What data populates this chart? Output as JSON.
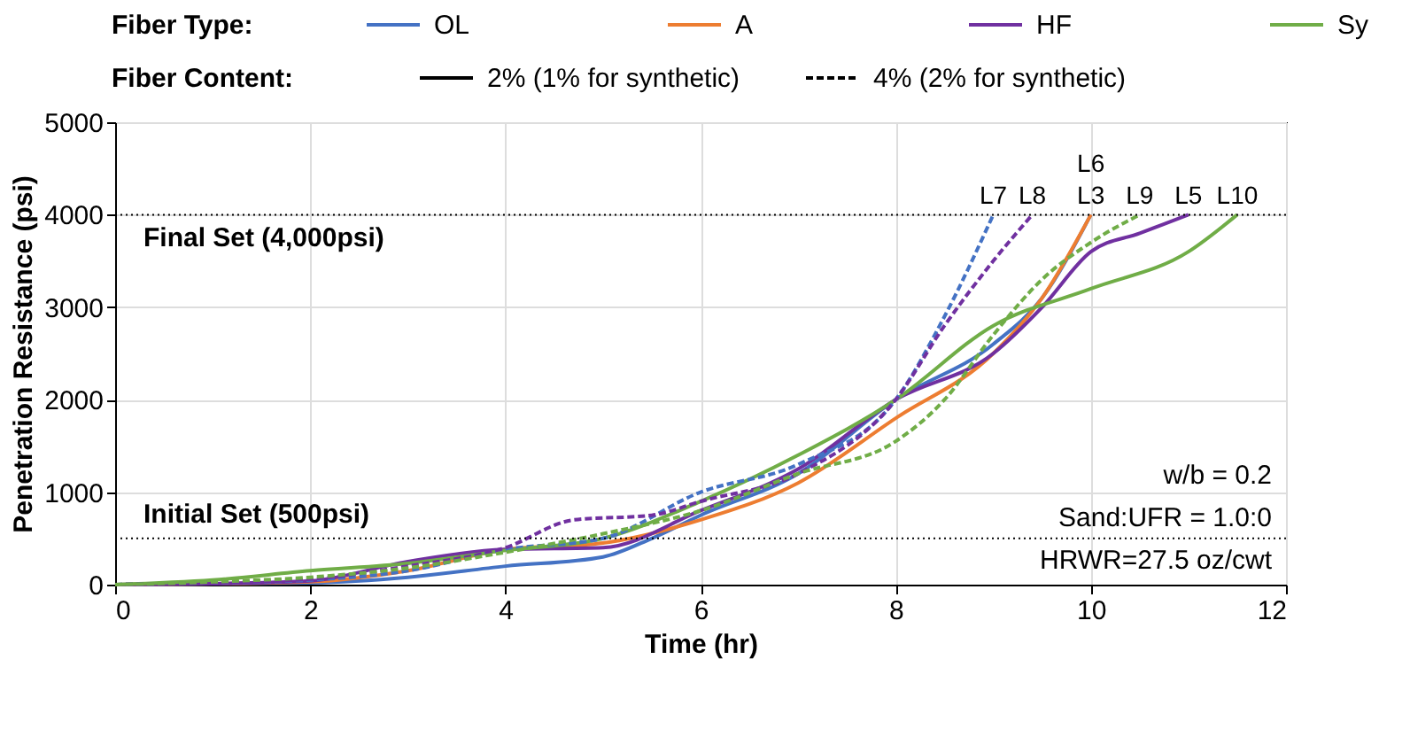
{
  "chart_data": {
    "type": "line",
    "xlabel": "Time (hr)",
    "ylabel": "Penetration Resistance (psi)",
    "legend_title": "Fiber Type:",
    "legend": "top",
    "grid": true,
    "marker": "none",
    "xlim": [
      0,
      12
    ],
    "xticks": [
      0,
      2,
      4,
      6,
      8,
      10,
      12
    ],
    "ylim": [
      0,
      5000
    ],
    "yticks": [
      0,
      1000,
      2000,
      3000,
      4000,
      5000
    ],
    "series": [
      {
        "name": "OL",
        "color": "#4472c4",
        "line_style": "solid",
        "x": [
          0,
          1,
          2,
          3,
          4,
          5,
          5.5,
          6,
          7,
          8,
          9,
          9.5,
          10
        ],
        "values": [
          0,
          10,
          20,
          80,
          200,
          300,
          500,
          750,
          1200,
          2000,
          2600,
          3100,
          4000
        ]
      },
      {
        "name": "A",
        "color": "#ed7d31",
        "line_style": "solid",
        "x": [
          0,
          1,
          2,
          3,
          4,
          5,
          6,
          7,
          8,
          9,
          9.5,
          10
        ],
        "values": [
          0,
          10,
          30,
          150,
          380,
          450,
          700,
          1100,
          1800,
          2500,
          3100,
          4000
        ]
      },
      {
        "name": "HF",
        "color": "#7030a0",
        "line_style": "solid",
        "x": [
          0,
          1,
          2,
          3,
          4,
          5,
          6,
          7,
          8,
          9,
          9.5,
          10,
          10.5,
          11
        ],
        "values": [
          0,
          10,
          40,
          250,
          380,
          400,
          800,
          1250,
          2000,
          2500,
          3000,
          3600,
          3800,
          4000
        ]
      },
      {
        "name": "Sy",
        "color": "#70ad47",
        "line_style": "solid",
        "x": [
          0,
          1,
          2,
          3,
          4,
          5,
          6,
          7,
          8,
          9,
          10,
          11,
          11.5
        ],
        "values": [
          0,
          50,
          150,
          230,
          370,
          500,
          900,
          1400,
          2000,
          2800,
          3200,
          3600,
          4000
        ]
      },
      {
        "color": "#4472c4",
        "line_style": "dashed",
        "x": [
          0,
          1,
          2,
          3,
          4,
          5,
          6,
          7,
          8,
          8.5,
          9
        ],
        "values": [
          0,
          20,
          50,
          150,
          380,
          500,
          1000,
          1300,
          2000,
          2900,
          4000
        ]
      },
      {
        "color": "#7030a0",
        "line_style": "dashed",
        "x": [
          0,
          1,
          2,
          3,
          4,
          4.7,
          5.5,
          6,
          7,
          8,
          8.5,
          9,
          9.4
        ],
        "values": [
          0,
          20,
          60,
          200,
          400,
          700,
          750,
          900,
          1200,
          2000,
          2800,
          3500,
          4000
        ]
      },
      {
        "color": "#70ad47",
        "line_style": "dashed",
        "x": [
          0,
          1,
          2,
          3,
          4,
          5,
          6,
          7,
          8,
          8.5,
          9,
          9.5,
          10,
          10.5
        ],
        "values": [
          0,
          30,
          80,
          180,
          350,
          550,
          800,
          1200,
          1550,
          2000,
          2700,
          3300,
          3700,
          4000
        ]
      }
    ],
    "ref_lines": [
      {
        "axis": "y",
        "value": 4000,
        "label": "Final Set (4,000psi)",
        "color": "#000000",
        "line_style": "dotted"
      },
      {
        "axis": "y",
        "value": 500,
        "label": "Initial Set (500psi)",
        "color": "#000000",
        "line_style": "dotted"
      }
    ],
    "annotations": [
      "Fiber Content:",
      "2% (1% for synthetic)",
      "4% (2% for synthetic)",
      "w/b = 0.2",
      "Sand:UFR = 1.0:0",
      "HRWR=27.5 oz/cwt",
      {
        "text": "L7",
        "x": 9.0,
        "y": 4000
      },
      {
        "text": "L8",
        "x": 9.4,
        "y": 4000
      },
      {
        "text": "L3",
        "x": 10,
        "y": 4000
      },
      {
        "text": "L6",
        "x": 10,
        "y": 4000
      },
      {
        "text": "L9",
        "x": 10.5,
        "y": 4000
      },
      {
        "text": "L5",
        "x": 11,
        "y": 4000
      },
      {
        "text": "L10",
        "x": 11.5,
        "y": 4000
      }
    ]
  }
}
